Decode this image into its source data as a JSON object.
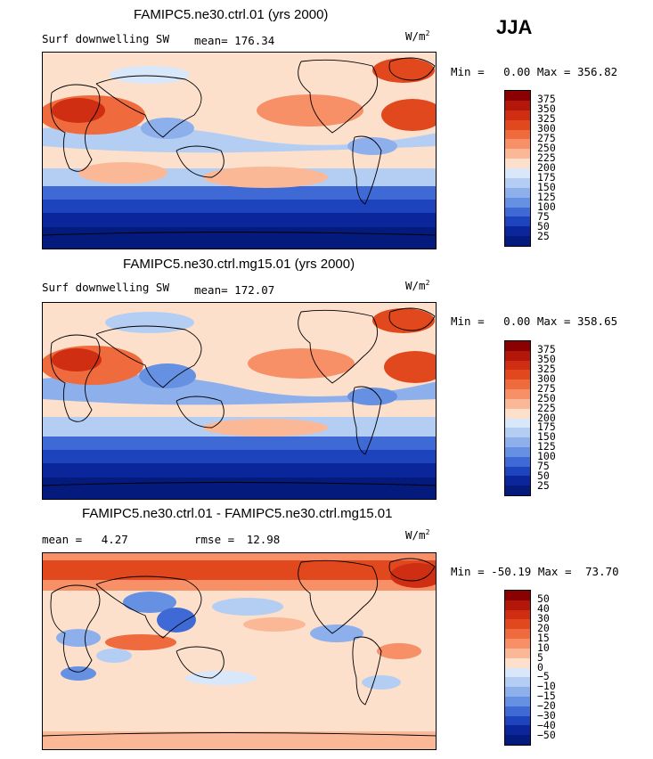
{
  "season": "JJA",
  "panels": [
    {
      "title": "FAMIPC5.ne30.ctrl.01 (yrs 2000)",
      "variable": "Surf downwelling SW",
      "stat_label": "mean=",
      "stat_value": "176.34",
      "units": "W/m",
      "units_sup": "2",
      "min_label": "Min =",
      "min_value": "0.00",
      "max_label": "Max =",
      "max_value": "356.82",
      "levels": [
        "375",
        "350",
        "325",
        "300",
        "275",
        "250",
        "225",
        "200",
        "175",
        "150",
        "125",
        "100",
        "75",
        "50",
        "25"
      ]
    },
    {
      "title": "FAMIPC5.ne30.ctrl.mg15.01 (yrs 2000)",
      "variable": "Surf downwelling SW",
      "stat_label": "mean=",
      "stat_value": "172.07",
      "units": "W/m",
      "units_sup": "2",
      "min_label": "Min =",
      "min_value": "0.00",
      "max_label": "Max =",
      "max_value": "358.65",
      "levels": [
        "375",
        "350",
        "325",
        "300",
        "275",
        "250",
        "225",
        "200",
        "175",
        "150",
        "125",
        "100",
        "75",
        "50",
        "25"
      ]
    },
    {
      "title": "FAMIPC5.ne30.ctrl.01 - FAMIPC5.ne30.ctrl.mg15.01",
      "mean_label": "mean =",
      "mean_value": "4.27",
      "rmse_label": "rmse =",
      "rmse_value": "12.98",
      "units": "W/m",
      "units_sup": "2",
      "min_label": "Min =",
      "min_value": "-50.19",
      "max_label": "Max =",
      "max_value": "73.70",
      "levels": [
        "50",
        "40",
        "30",
        "20",
        "15",
        "10",
        "5",
        "0",
        "−5",
        "−10",
        "−15",
        "−20",
        "−30",
        "−40",
        "−50"
      ]
    }
  ],
  "colors": {
    "field_scale": [
      "#8b0000",
      "#b2170a",
      "#cf2e13",
      "#e2481e",
      "#ef6a3c",
      "#f78f67",
      "#fbb896",
      "#fde0cc",
      "#d9e7fb",
      "#b4cef3",
      "#8db0ec",
      "#6690e2",
      "#3f6ad6",
      "#1e44bd",
      "#0b259b",
      "#041a7c"
    ],
    "diff_scale": [
      "#8b0000",
      "#b2170a",
      "#cf2e13",
      "#e2481e",
      "#ef6a3c",
      "#f78f67",
      "#fbb896",
      "#fde0cc",
      "#d9e7fb",
      "#b4cef3",
      "#8db0ec",
      "#6690e2",
      "#3f6ad6",
      "#1e44bd",
      "#0b259b",
      "#041a7c"
    ],
    "coast": "#000000"
  }
}
